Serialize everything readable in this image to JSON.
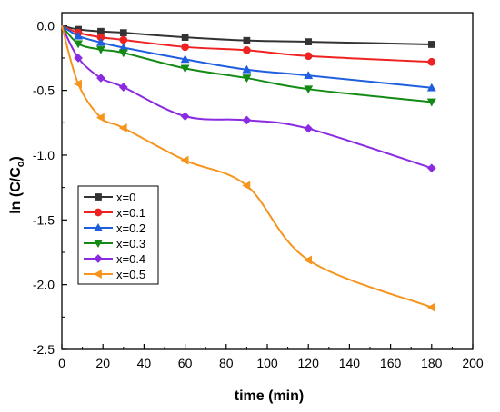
{
  "chart_data": {
    "type": "line",
    "xlabel": "time (min)",
    "ylabel": "ln (C/C",
    "ylabel_sub": "o",
    "ylabel_close": ")",
    "xlim": [
      0,
      200
    ],
    "ylim": [
      -2.5,
      0.1
    ],
    "x_ticks": [
      "0",
      "20",
      "40",
      "60",
      "80",
      "100",
      "120",
      "140",
      "160",
      "180",
      "200"
    ],
    "y_ticks": [
      "0.0",
      "-0.5",
      "-1.0",
      "-1.5",
      "-2.0",
      "-2.5"
    ],
    "x_tick_values": [
      0,
      20,
      40,
      60,
      80,
      100,
      120,
      140,
      160,
      180,
      200
    ],
    "y_tick_values": [
      0,
      -0.5,
      -1.0,
      -1.5,
      -2.0,
      -2.5
    ],
    "grid": false,
    "legend_position": "bottom-left",
    "x": [
      0,
      8,
      19,
      30,
      60,
      90,
      120,
      180
    ],
    "series": [
      {
        "name": "x=0",
        "color": "#333333",
        "marker": "square",
        "values": [
          0,
          -0.03,
          -0.045,
          -0.055,
          -0.09,
          -0.115,
          -0.125,
          -0.145
        ]
      },
      {
        "name": "x=0.1",
        "color": "#ee2222",
        "marker": "circle",
        "values": [
          0,
          -0.055,
          -0.09,
          -0.11,
          -0.165,
          -0.19,
          -0.235,
          -0.28
        ]
      },
      {
        "name": "x=0.2",
        "color": "#1f5fdf",
        "marker": "triangle-up",
        "values": [
          0,
          -0.08,
          -0.13,
          -0.17,
          -0.26,
          -0.34,
          -0.385,
          -0.48
        ]
      },
      {
        "name": "x=0.3",
        "color": "#138a13",
        "marker": "triangle-down",
        "values": [
          0,
          -0.14,
          -0.185,
          -0.21,
          -0.33,
          -0.405,
          -0.49,
          -0.59
        ]
      },
      {
        "name": "x=0.4",
        "color": "#8a2be2",
        "marker": "diamond",
        "values": [
          0,
          -0.25,
          -0.405,
          -0.475,
          -0.7,
          -0.73,
          -0.795,
          -1.1
        ]
      },
      {
        "name": "x=0.5",
        "color": "#f7941d",
        "marker": "triangle-left",
        "values": [
          0,
          -0.45,
          -0.71,
          -0.79,
          -1.04,
          -1.235,
          -1.81,
          -2.175
        ]
      }
    ]
  }
}
